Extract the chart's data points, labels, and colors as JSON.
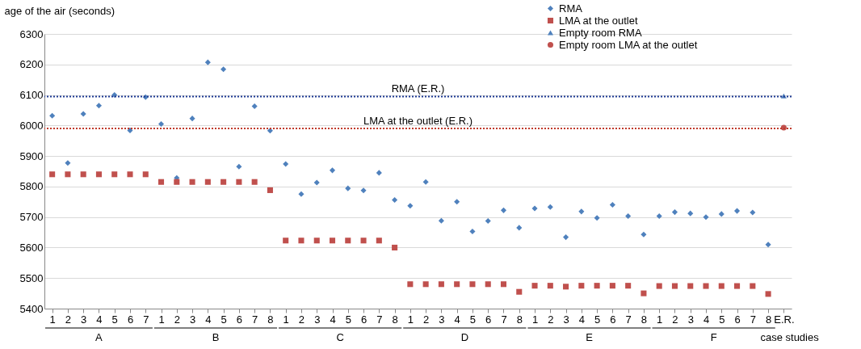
{
  "chart_data": {
    "type": "scatter",
    "ylabel": "age of the air (seconds)",
    "categories": [
      "1",
      "2",
      "3",
      "4",
      "5",
      "6",
      "7",
      "1",
      "2",
      "3",
      "4",
      "5",
      "6",
      "7",
      "8",
      "1",
      "2",
      "3",
      "4",
      "5",
      "6",
      "7",
      "8",
      "1",
      "2",
      "3",
      "4",
      "5",
      "6",
      "7",
      "8",
      "1",
      "2",
      "3",
      "4",
      "5",
      "6",
      "7",
      "8",
      "1",
      "2",
      "3",
      "4",
      "5",
      "6",
      "7",
      "8",
      "E.R."
    ],
    "series": [
      {
        "name": "RMA",
        "color": "#4f81bd",
        "marker": "diamond",
        "values": [
          6032,
          5877,
          6038,
          6065,
          6100,
          5984,
          6093,
          6005,
          5828,
          6023,
          6207,
          6184,
          5865,
          6063,
          5983,
          5874,
          5775,
          5813,
          5853,
          5794,
          5787,
          5845,
          5756,
          5737,
          5815,
          5688,
          5750,
          5653,
          5687,
          5722,
          5665,
          5728,
          5733,
          5634,
          5718,
          5697,
          5740,
          5703,
          5643,
          5703,
          5716,
          5712,
          5700,
          5710,
          5720,
          5715,
          5610,
          null
        ]
      },
      {
        "name": "LMA at the outlet",
        "color": "#c0504d",
        "marker": "square",
        "values": [
          5840,
          5840,
          5840,
          5840,
          5840,
          5840,
          5840,
          5815,
          5815,
          5815,
          5815,
          5815,
          5815,
          5815,
          5788,
          5623,
          5623,
          5623,
          5623,
          5623,
          5623,
          5623,
          5600,
          5480,
          5480,
          5480,
          5480,
          5480,
          5480,
          5480,
          5455,
          5475,
          5475,
          5472,
          5475,
          5475,
          5475,
          5475,
          5450,
          5474,
          5474,
          5474,
          5474,
          5474,
          5474,
          5474,
          5448,
          null
        ]
      },
      {
        "name": "Empty room RMA",
        "color": "#4f81bd",
        "marker": "triangle",
        "values": [
          null,
          null,
          null,
          null,
          null,
          null,
          null,
          null,
          null,
          null,
          null,
          null,
          null,
          null,
          null,
          null,
          null,
          null,
          null,
          null,
          null,
          null,
          null,
          null,
          null,
          null,
          null,
          null,
          null,
          null,
          null,
          null,
          null,
          null,
          null,
          null,
          null,
          null,
          null,
          null,
          null,
          null,
          null,
          null,
          null,
          null,
          null,
          6097
        ]
      },
      {
        "name": "Empty room LMA at the outlet",
        "color": "#c0504d",
        "marker": "circle",
        "values": [
          null,
          null,
          null,
          null,
          null,
          null,
          null,
          null,
          null,
          null,
          null,
          null,
          null,
          null,
          null,
          null,
          null,
          null,
          null,
          null,
          null,
          null,
          null,
          null,
          null,
          null,
          null,
          null,
          null,
          null,
          null,
          null,
          null,
          null,
          null,
          null,
          null,
          null,
          null,
          null,
          null,
          null,
          null,
          null,
          null,
          null,
          null,
          5993
        ]
      }
    ],
    "ylim": [
      5400,
      6300
    ],
    "yticks": [
      5400,
      5500,
      5600,
      5700,
      5800,
      5900,
      6000,
      6100,
      6200,
      6300
    ],
    "ref_lines": [
      {
        "axis": "y",
        "value": 6095,
        "label": "RMA (E.R.)",
        "color": "#1f3a93",
        "line_style": "dotted"
      },
      {
        "axis": "y",
        "value": 5990,
        "label": "LMA at the outlet (E.R.)",
        "color": "#c0392b",
        "line_style": "dotted"
      }
    ],
    "annotations": [
      "A",
      "B",
      "C",
      "D",
      "E",
      "F",
      "case studies"
    ],
    "grid": "y",
    "legend": "top right"
  }
}
